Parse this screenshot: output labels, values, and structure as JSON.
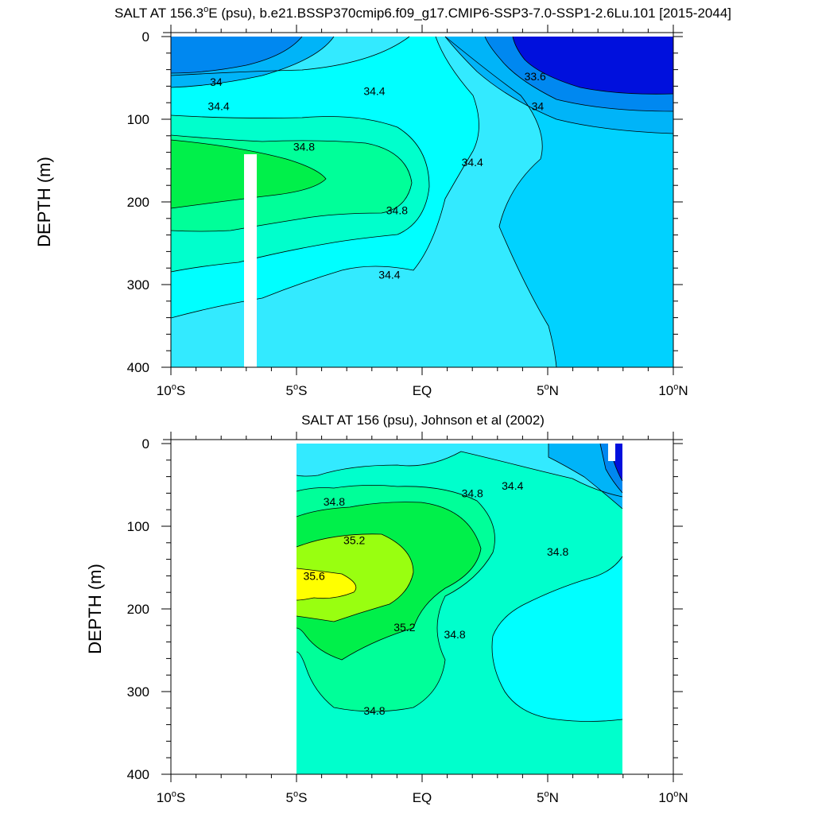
{
  "chart_data": [
    {
      "type": "contour",
      "title": "SALT AT 156.3°E (psu), b.e21.BSSP370cmip6.f09_g17.CMIP6-SSP3-7.0-SSP1-2.6Lu.101 [2015-2044]",
      "title_parts": {
        "pre": "SALT AT 156.3",
        "sup": "o",
        "post": "E (psu), b.e21.BSSP370cmip6.f09_g17.CMIP6-SSP3-7.0-SSP1-2.6Lu.101 [2015-2044]"
      },
      "xlabel": "",
      "ylabel": "DEPTH (m)",
      "xlim": [
        -10,
        10
      ],
      "ylim": [
        0,
        400
      ],
      "y_inverted": true,
      "x_ticks": [
        {
          "value": -10,
          "num": "10",
          "dir": "S"
        },
        {
          "value": -5,
          "num": "5",
          "dir": "S"
        },
        {
          "value": 0,
          "num": "EQ",
          "dir": ""
        },
        {
          "value": 5,
          "num": "5",
          "dir": "N"
        },
        {
          "value": 10,
          "num": "10",
          "dir": "N"
        }
      ],
      "y_ticks": [
        "0",
        "100",
        "200",
        "300",
        "400"
      ],
      "contour_levels": [
        33.6,
        34.0,
        34.4,
        34.8
      ],
      "contour_labels": [
        {
          "text": "34",
          "x": -8.2,
          "y": 55
        },
        {
          "text": "34.4",
          "x": -8.1,
          "y": 84
        },
        {
          "text": "34.4",
          "x": -1.9,
          "y": 66
        },
        {
          "text": "33.6",
          "x": 4.5,
          "y": 48
        },
        {
          "text": "34",
          "x": 4.6,
          "y": 84
        },
        {
          "text": "34.8",
          "x": -4.7,
          "y": 133
        },
        {
          "text": "34.4",
          "x": 2.0,
          "y": 152
        },
        {
          "text": "34.8",
          "x": -1.0,
          "y": 210
        },
        {
          "text": "34.4",
          "x": -1.3,
          "y": 288
        }
      ],
      "missing_column": {
        "x": [
          -7.0,
          -6.5
        ],
        "y": [
          145,
          400
        ]
      }
    },
    {
      "type": "contour",
      "title": "SALT AT 156 (psu), Johnson et al (2002)",
      "xlabel": "",
      "ylabel": "DEPTH (m)",
      "xlim": [
        -10,
        10
      ],
      "ylim": [
        0,
        400
      ],
      "y_inverted": true,
      "data_extent_x": [
        -5,
        8
      ],
      "x_ticks": [
        {
          "value": -10,
          "num": "10",
          "dir": "S"
        },
        {
          "value": -5,
          "num": "5",
          "dir": "S"
        },
        {
          "value": 0,
          "num": "EQ",
          "dir": ""
        },
        {
          "value": 5,
          "num": "5",
          "dir": "N"
        },
        {
          "value": 10,
          "num": "10",
          "dir": "N"
        }
      ],
      "y_ticks": [
        "0",
        "100",
        "200",
        "300",
        "400"
      ],
      "contour_levels": [
        34.4,
        34.8,
        35.2,
        35.6
      ],
      "contour_labels": [
        {
          "text": "34.8",
          "x": -3.5,
          "y": 70
        },
        {
          "text": "34.8",
          "x": 2.0,
          "y": 60
        },
        {
          "text": "34.4",
          "x": 3.6,
          "y": 51
        },
        {
          "text": "35.2",
          "x": -2.7,
          "y": 117
        },
        {
          "text": "34.8",
          "x": 5.4,
          "y": 131
        },
        {
          "text": "35.6",
          "x": -4.3,
          "y": 160
        },
        {
          "text": "35.2",
          "x": -0.7,
          "y": 222
        },
        {
          "text": "34.8",
          "x": 1.3,
          "y": 231
        },
        {
          "text": "34.8",
          "x": -1.9,
          "y": 323
        }
      ]
    }
  ],
  "colors": {
    "dark_blue": "#0010dd",
    "mid_blue": "#0088f0",
    "light_blue": "#00b4f8",
    "sky": "#00d2ff",
    "pale_cyan": "#33eaff",
    "cyan": "#00ffff",
    "aqua_green": "#00ffcc",
    "mint": "#00ff99",
    "green": "#00f04a",
    "yellow_green": "#99ff10",
    "yellow": "#ffff00"
  }
}
